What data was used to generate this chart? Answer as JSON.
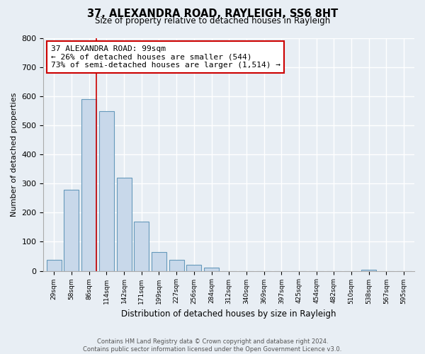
{
  "title": "37, ALEXANDRA ROAD, RAYLEIGH, SS6 8HT",
  "subtitle": "Size of property relative to detached houses in Rayleigh",
  "xlabel": "Distribution of detached houses by size in Rayleigh",
  "ylabel": "Number of detached properties",
  "bar_labels": [
    "29sqm",
    "58sqm",
    "86sqm",
    "114sqm",
    "142sqm",
    "171sqm",
    "199sqm",
    "227sqm",
    "256sqm",
    "284sqm",
    "312sqm",
    "340sqm",
    "369sqm",
    "397sqm",
    "425sqm",
    "454sqm",
    "482sqm",
    "510sqm",
    "538sqm",
    "567sqm",
    "595sqm"
  ],
  "bar_values": [
    38,
    278,
    591,
    549,
    320,
    170,
    65,
    38,
    20,
    12,
    0,
    0,
    0,
    0,
    0,
    0,
    0,
    0,
    5,
    0,
    0
  ],
  "bar_color": "#c8d8ea",
  "bar_edge_color": "#6699bb",
  "vline_color": "#cc0000",
  "annotation_text": "37 ALEXANDRA ROAD: 99sqm\n← 26% of detached houses are smaller (544)\n73% of semi-detached houses are larger (1,514) →",
  "annotation_box_color": "white",
  "annotation_box_edge_color": "#cc0000",
  "ylim": [
    0,
    800
  ],
  "yticks": [
    0,
    100,
    200,
    300,
    400,
    500,
    600,
    700,
    800
  ],
  "footer_line1": "Contains HM Land Registry data © Crown copyright and database right 2024.",
  "footer_line2": "Contains public sector information licensed under the Open Government Licence v3.0.",
  "bg_color": "#e8eef4",
  "grid_color": "white"
}
